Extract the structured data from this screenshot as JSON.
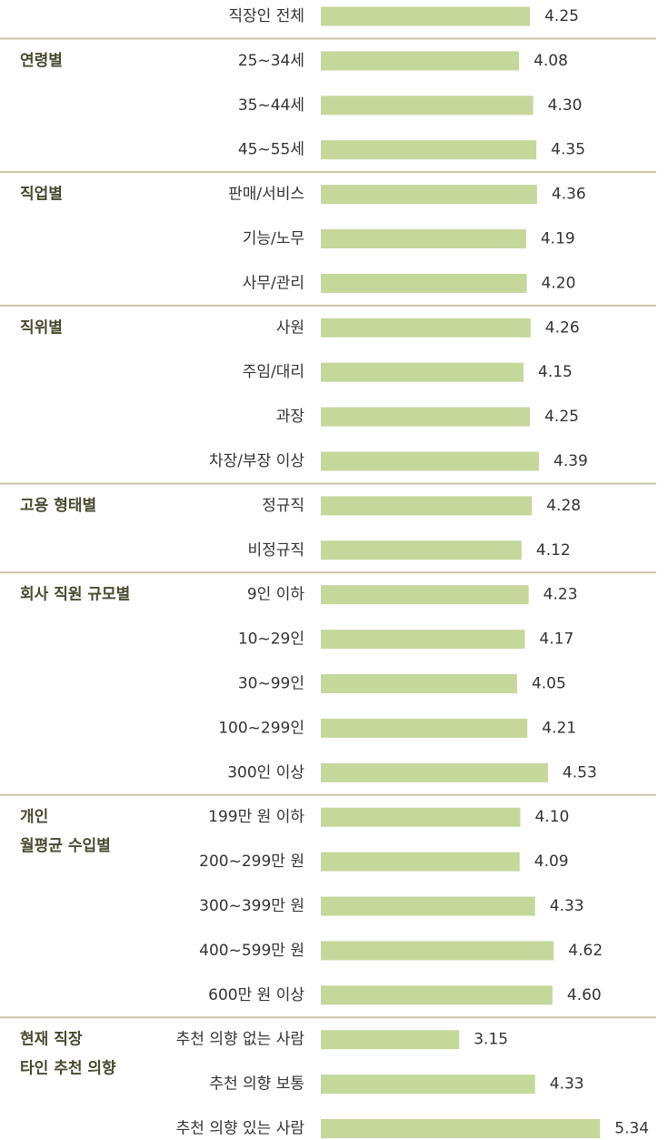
{
  "chart_data": {
    "type": "bar",
    "orientation": "horizontal",
    "color": "#c6d79c",
    "xlim": [
      1,
      6
    ],
    "groups": [
      {
        "categories": [
          "직장인 전체"
        ],
        "values": [
          4.25
        ],
        "value_labels": [
          "4.25"
        ]
      },
      {
        "label": [
          "연령별"
        ],
        "categories": [
          "25~34세",
          "35~44세",
          "45~55세"
        ],
        "values": [
          4.08,
          4.3,
          4.35
        ],
        "value_labels": [
          "4.08",
          "4.30",
          "4.35"
        ]
      },
      {
        "label": [
          "직업별"
        ],
        "categories": [
          "판매/서비스",
          "기능/노무",
          "사무/관리"
        ],
        "values": [
          4.36,
          4.19,
          4.2
        ],
        "value_labels": [
          "4.36",
          "4.19",
          "4.20"
        ]
      },
      {
        "label": [
          "직위별"
        ],
        "categories": [
          "사원",
          "주임/대리",
          "과장",
          "차장/부장 이상"
        ],
        "values": [
          4.26,
          4.15,
          4.25,
          4.39
        ],
        "value_labels": [
          "4.26",
          "4.15",
          "4.25",
          "4.39"
        ]
      },
      {
        "label": [
          "고용 형태별"
        ],
        "categories": [
          "정규직",
          "비정규직"
        ],
        "values": [
          4.28,
          4.12
        ],
        "value_labels": [
          "4.28",
          "4.12"
        ]
      },
      {
        "label": [
          "회사 직원 규모별"
        ],
        "categories": [
          "9인 이하",
          "10~29인",
          "30~99인",
          "100~299인",
          "300인 이상"
        ],
        "values": [
          4.23,
          4.17,
          4.05,
          4.21,
          4.53
        ],
        "value_labels": [
          "4.23",
          "4.17",
          "4.05",
          "4.21",
          "4.53"
        ]
      },
      {
        "label": [
          "개인",
          "월평균 수입별"
        ],
        "categories": [
          "199만 원 이하",
          "200~299만 원",
          "300~399만 원",
          "400~599만 원",
          "600만 원 이상"
        ],
        "values": [
          4.1,
          4.09,
          4.33,
          4.62,
          4.6
        ],
        "value_labels": [
          "4.10",
          "4.09",
          "4.33",
          "4.62",
          "4.60"
        ]
      },
      {
        "label": [
          "현재 직장",
          "타인 추천 의향"
        ],
        "categories": [
          "추천 의향 없는 사람",
          "추천 의향 보통",
          "추천 의향 있는 사람"
        ],
        "values": [
          3.15,
          4.33,
          5.34
        ],
        "value_labels": [
          "3.15",
          "4.33",
          "5.34"
        ]
      }
    ]
  }
}
